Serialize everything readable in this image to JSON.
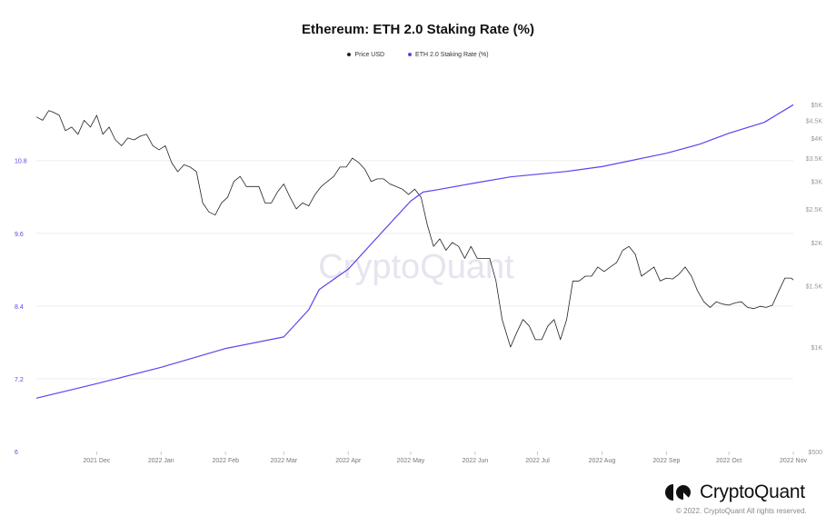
{
  "chart_data": {
    "type": "line",
    "title": "Ethereum: ETH 2.0 Staking Rate (%)",
    "watermark": "CryptoQuant",
    "legend_placement": "top-center",
    "grid": "horizontal",
    "xlim": [
      "2021-11-02",
      "2022-11-01"
    ],
    "x_ticks": [
      {
        "date": "2021-12-01",
        "label": "2021 Dec"
      },
      {
        "date": "2022-01-01",
        "label": "2022 Jan"
      },
      {
        "date": "2022-02-01",
        "label": "2022 Feb"
      },
      {
        "date": "2022-03-01",
        "label": "2022 Mar"
      },
      {
        "date": "2022-04-01",
        "label": "2022 Apr"
      },
      {
        "date": "2022-05-01",
        "label": "2022 May"
      },
      {
        "date": "2022-06-01",
        "label": "2022 Jun"
      },
      {
        "date": "2022-07-01",
        "label": "2022 Jul"
      },
      {
        "date": "2022-08-01",
        "label": "2022 Aug"
      },
      {
        "date": "2022-09-01",
        "label": "2022 Sep"
      },
      {
        "date": "2022-10-01",
        "label": "2022 Oct"
      },
      {
        "date": "2022-11-01",
        "label": "2022 Nov"
      }
    ],
    "left_axis": {
      "ylim": [
        6,
        11.8
      ],
      "scale": "linear",
      "color": "#5b43f0",
      "ticks": [
        {
          "v": 6,
          "label": "6"
        },
        {
          "v": 7.2,
          "label": "7.2"
        },
        {
          "v": 8.4,
          "label": "8.4"
        },
        {
          "v": 9.6,
          "label": "9.6"
        },
        {
          "v": 10.8,
          "label": "10.8"
        }
      ]
    },
    "right_axis": {
      "ylim": [
        500,
        5150
      ],
      "scale": "log",
      "color": "#999999",
      "ticks": [
        {
          "v": 500,
          "label": "$500"
        },
        {
          "v": 1000,
          "label": "$1K"
        },
        {
          "v": 1500,
          "label": "$1.5K"
        },
        {
          "v": 2000,
          "label": "$2K"
        },
        {
          "v": 2500,
          "label": "$2.5K"
        },
        {
          "v": 3000,
          "label": "$3K"
        },
        {
          "v": 3500,
          "label": "$3.5K"
        },
        {
          "v": 4000,
          "label": "$4K"
        },
        {
          "v": 4500,
          "label": "$4.5K"
        },
        {
          "v": 5000,
          "label": "$5K"
        }
      ]
    },
    "series": [
      {
        "name": "Price USD",
        "axis": "right",
        "color": "#222222",
        "x": [
          "2021-11-02",
          "2021-11-05",
          "2021-11-08",
          "2021-11-10",
          "2021-11-13",
          "2021-11-16",
          "2021-11-19",
          "2021-11-22",
          "2021-11-25",
          "2021-11-28",
          "2021-12-01",
          "2021-12-04",
          "2021-12-07",
          "2021-12-10",
          "2021-12-13",
          "2021-12-16",
          "2021-12-19",
          "2021-12-22",
          "2021-12-25",
          "2021-12-28",
          "2021-12-31",
          "2022-01-03",
          "2022-01-06",
          "2022-01-09",
          "2022-01-12",
          "2022-01-15",
          "2022-01-18",
          "2022-01-21",
          "2022-01-24",
          "2022-01-27",
          "2022-01-30",
          "2022-02-02",
          "2022-02-05",
          "2022-02-08",
          "2022-02-11",
          "2022-02-14",
          "2022-02-17",
          "2022-02-20",
          "2022-02-23",
          "2022-02-26",
          "2022-03-01",
          "2022-03-04",
          "2022-03-07",
          "2022-03-10",
          "2022-03-13",
          "2022-03-16",
          "2022-03-19",
          "2022-03-22",
          "2022-03-25",
          "2022-03-28",
          "2022-03-31",
          "2022-04-03",
          "2022-04-06",
          "2022-04-09",
          "2022-04-12",
          "2022-04-15",
          "2022-04-18",
          "2022-04-21",
          "2022-04-24",
          "2022-04-27",
          "2022-04-30",
          "2022-05-03",
          "2022-05-06",
          "2022-05-09",
          "2022-05-12",
          "2022-05-15",
          "2022-05-18",
          "2022-05-21",
          "2022-05-24",
          "2022-05-27",
          "2022-05-30",
          "2022-06-02",
          "2022-06-05",
          "2022-06-08",
          "2022-06-11",
          "2022-06-14",
          "2022-06-18",
          "2022-06-21",
          "2022-06-24",
          "2022-06-27",
          "2022-06-30",
          "2022-07-03",
          "2022-07-06",
          "2022-07-09",
          "2022-07-12",
          "2022-07-15",
          "2022-07-18",
          "2022-07-21",
          "2022-07-24",
          "2022-07-27",
          "2022-07-30",
          "2022-08-02",
          "2022-08-05",
          "2022-08-08",
          "2022-08-11",
          "2022-08-14",
          "2022-08-17",
          "2022-08-20",
          "2022-08-23",
          "2022-08-26",
          "2022-08-29",
          "2022-09-01",
          "2022-09-04",
          "2022-09-07",
          "2022-09-10",
          "2022-09-13",
          "2022-09-16",
          "2022-09-19",
          "2022-09-22",
          "2022-09-25",
          "2022-09-28",
          "2022-10-01",
          "2022-10-04",
          "2022-10-07",
          "2022-10-10",
          "2022-10-13",
          "2022-10-16",
          "2022-10-19",
          "2022-10-22",
          "2022-10-25",
          "2022-10-28",
          "2022-10-31",
          "2022-11-01"
        ],
        "values": [
          4600,
          4500,
          4800,
          4750,
          4650,
          4200,
          4300,
          4100,
          4500,
          4300,
          4650,
          4100,
          4300,
          3950,
          3800,
          4000,
          3950,
          4050,
          4100,
          3800,
          3700,
          3800,
          3400,
          3200,
          3350,
          3300,
          3200,
          2600,
          2450,
          2400,
          2600,
          2700,
          3000,
          3100,
          2900,
          2900,
          2900,
          2600,
          2600,
          2800,
          2950,
          2700,
          2500,
          2600,
          2550,
          2750,
          2900,
          3000,
          3100,
          3300,
          3300,
          3500,
          3400,
          3250,
          3000,
          3050,
          3050,
          2950,
          2900,
          2850,
          2750,
          2850,
          2700,
          2250,
          1950,
          2050,
          1900,
          2000,
          1950,
          1800,
          1950,
          1800,
          1800,
          1800,
          1550,
          1200,
          1000,
          1100,
          1200,
          1150,
          1050,
          1050,
          1150,
          1200,
          1050,
          1200,
          1550,
          1550,
          1600,
          1600,
          1700,
          1650,
          1700,
          1750,
          1900,
          1950,
          1850,
          1600,
          1650,
          1700,
          1550,
          1580,
          1570,
          1620,
          1700,
          1600,
          1450,
          1350,
          1300,
          1350,
          1330,
          1320,
          1340,
          1350,
          1300,
          1290,
          1310,
          1300,
          1320,
          1450,
          1580,
          1580,
          1560
        ]
      },
      {
        "name": "ETH 2.0 Staking Rate (%)",
        "axis": "left",
        "color": "#5b43f0",
        "x": [
          "2021-11-02",
          "2021-12-01",
          "2022-01-01",
          "2022-02-01",
          "2022-03-01",
          "2022-03-13",
          "2022-03-18",
          "2022-04-01",
          "2022-04-17",
          "2022-05-01",
          "2022-05-07",
          "2022-05-14",
          "2022-06-01",
          "2022-06-18",
          "2022-07-15",
          "2022-08-01",
          "2022-09-01",
          "2022-09-17",
          "2022-10-01",
          "2022-10-18",
          "2022-11-01"
        ],
        "values": [
          6.88,
          7.12,
          7.39,
          7.7,
          7.89,
          8.34,
          8.67,
          9.01,
          9.61,
          10.13,
          10.28,
          10.32,
          10.43,
          10.53,
          10.62,
          10.7,
          10.92,
          11.07,
          11.25,
          11.43,
          11.72
        ]
      }
    ]
  },
  "footer": {
    "brand": "CryptoQuant",
    "copyright": "© 2022. CryptoQuant All rights reserved."
  }
}
